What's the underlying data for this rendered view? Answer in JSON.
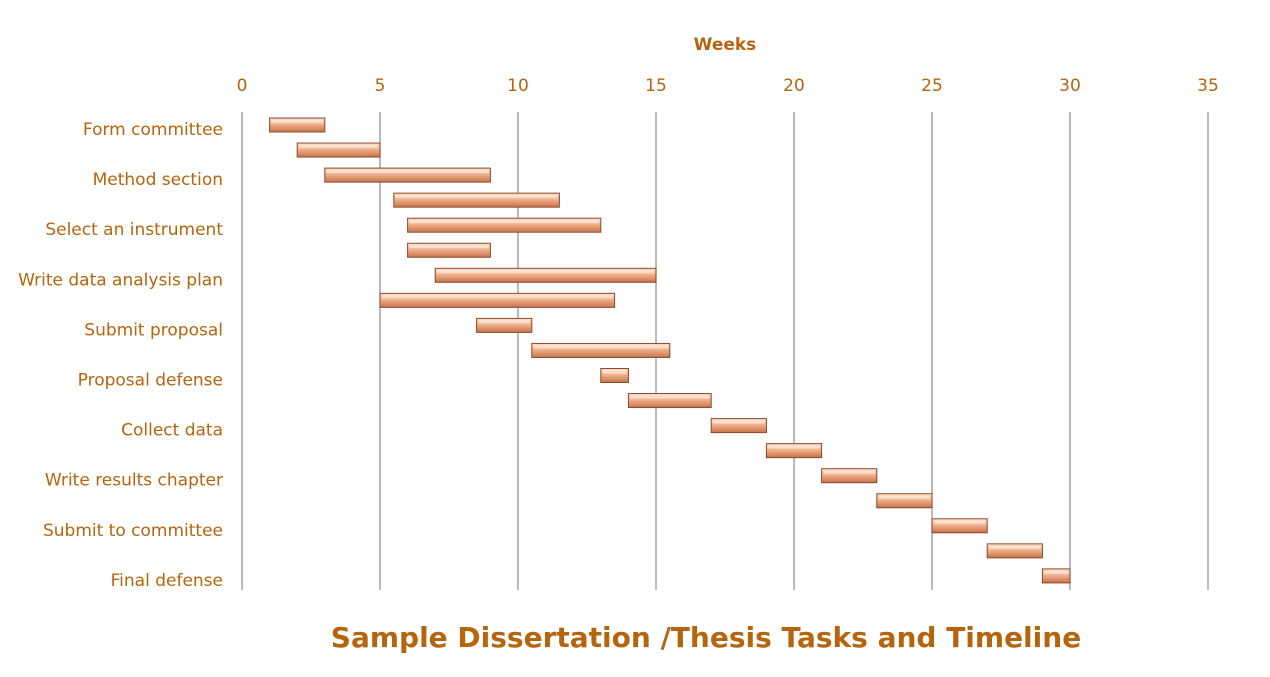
{
  "colors": {
    "text": "#b5650d",
    "grid": "#8c8c8c",
    "bar_light": "#fde3d0",
    "bar_mid": "#f0b08a",
    "bar_dark": "#c8734c",
    "bar_border": "#8a4a2c"
  },
  "chart_data": {
    "type": "bar",
    "orientation": "horizontal-gantt",
    "title": "Sample Dissertation /Thesis Tasks and Timeline",
    "xlabel": "Weeks",
    "xlim": [
      0,
      35
    ],
    "x_ticks": [
      "0",
      "5",
      "10",
      "15",
      "20",
      "25",
      "30",
      "35"
    ],
    "x_axis_position": "top",
    "grid": true,
    "category_labels": [
      "Form committee",
      "Method section",
      "Select an instrument",
      "Write data analysis plan",
      "Submit proposal",
      "Proposal defense",
      "Collect data",
      "Write results chapter",
      "Submit to committee",
      "Final defense"
    ],
    "tasks": [
      {
        "start": 1,
        "end": 3
      },
      {
        "start": 2,
        "end": 5
      },
      {
        "start": 3,
        "end": 9
      },
      {
        "start": 5.5,
        "end": 11.5
      },
      {
        "start": 6,
        "end": 13
      },
      {
        "start": 6,
        "end": 9
      },
      {
        "start": 7,
        "end": 15
      },
      {
        "start": 5,
        "end": 13.5
      },
      {
        "start": 8.5,
        "end": 10.5
      },
      {
        "start": 10.5,
        "end": 15.5
      },
      {
        "start": 13,
        "end": 14
      },
      {
        "start": 14,
        "end": 17
      },
      {
        "start": 17,
        "end": 19
      },
      {
        "start": 19,
        "end": 21
      },
      {
        "start": 21,
        "end": 23
      },
      {
        "start": 23,
        "end": 25
      },
      {
        "start": 25,
        "end": 27
      },
      {
        "start": 27,
        "end": 29
      },
      {
        "start": 29,
        "end": 30
      }
    ]
  }
}
